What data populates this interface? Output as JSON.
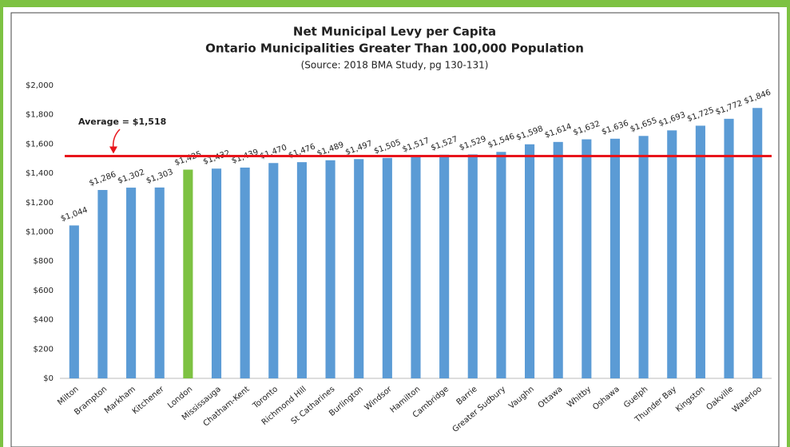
{
  "chart_data": {
    "type": "bar",
    "title": "Net Municipal Levy per Capita",
    "subtitle": "Ontario Municipalities Greater Than 100,000 Population",
    "source": "(Source: 2018 BMA Study, pg 130-131)",
    "categories": [
      "Milton",
      "Brampton",
      "Markham",
      "Kitchener",
      "London",
      "Mississauga",
      "Chatham-Kent",
      "Toronto",
      "Richmond Hill",
      "St Catharines",
      "Burlington",
      "Windsor",
      "Hamilton",
      "Cambridge",
      "Barrie",
      "Greater Sudbury",
      "Vaughn",
      "Ottawa",
      "Whitby",
      "Oshawa",
      "Guelph",
      "Thunder Bay",
      "Kingston",
      "Oakville",
      "Waterloo"
    ],
    "values": [
      1044,
      1286,
      1302,
      1303,
      1425,
      1432,
      1439,
      1470,
      1476,
      1489,
      1497,
      1505,
      1517,
      1527,
      1529,
      1546,
      1598,
      1614,
      1632,
      1636,
      1655,
      1693,
      1725,
      1772,
      1846
    ],
    "value_labels": [
      "$1,044",
      "$1,286",
      "$1,302",
      "$1,303",
      "$1,425",
      "$1,432",
      "$1,439",
      "$1,470",
      "$1,476",
      "$1,489",
      "$1,497",
      "$1,505",
      "$1,517",
      "$1,527",
      "$1,529",
      "$1,546",
      "$1,598",
      "$1,614",
      "$1,632",
      "$1,636",
      "$1,655",
      "$1,693",
      "$1,725",
      "$1,772",
      "$1,846"
    ],
    "colors": [
      "#5b9bd5",
      "#5b9bd5",
      "#5b9bd5",
      "#5b9bd5",
      "#7dc242",
      "#5b9bd5",
      "#5b9bd5",
      "#5b9bd5",
      "#5b9bd5",
      "#5b9bd5",
      "#5b9bd5",
      "#5b9bd5",
      "#5b9bd5",
      "#5b9bd5",
      "#5b9bd5",
      "#5b9bd5",
      "#5b9bd5",
      "#5b9bd5",
      "#5b9bd5",
      "#5b9bd5",
      "#5b9bd5",
      "#5b9bd5",
      "#5b9bd5",
      "#5b9bd5",
      "#5b9bd5"
    ],
    "ylim": [
      0,
      2000
    ],
    "yticks": [
      {
        "value": 0,
        "label": "$0"
      },
      {
        "value": 200,
        "label": "$200"
      },
      {
        "value": 400,
        "label": "$400"
      },
      {
        "value": 600,
        "label": "$600"
      },
      {
        "value": 800,
        "label": "$800"
      },
      {
        "value": 1000,
        "label": "$1,000"
      },
      {
        "value": 1200,
        "label": "$1,200"
      },
      {
        "value": 1400,
        "label": "$1,400"
      },
      {
        "value": 1600,
        "label": "$1,600"
      },
      {
        "value": 1800,
        "label": "$1,800"
      },
      {
        "value": 2000,
        "label": "$2,000"
      }
    ],
    "reference_line": {
      "value": 1518,
      "label": "Average = $1,518",
      "color": "#e8141b"
    },
    "grid": false
  }
}
